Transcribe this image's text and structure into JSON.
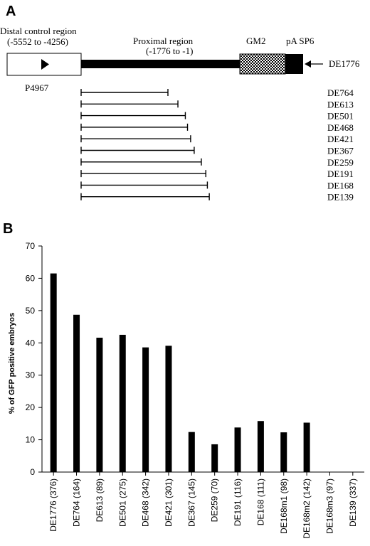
{
  "panel_a": {
    "letter": "A",
    "distal_label_line1": "Distal control region",
    "distal_label_line2": "(-5552 to -4256)",
    "proximal_label_line1": "Proximal region",
    "proximal_label_line2": "(-1776 to -1)",
    "gm2_label": "GM2",
    "pa_sp6_label": "pA SP6",
    "full_construct_label": "DE1776",
    "probe_label": "P4967",
    "deletions": [
      {
        "label": "DE764",
        "length": 764
      },
      {
        "label": "DE613",
        "length": 613
      },
      {
        "label": "DE501",
        "length": 501
      },
      {
        "label": "DE468",
        "length": 468
      },
      {
        "label": "DE421",
        "length": 421
      },
      {
        "label": "DE367",
        "length": 367
      },
      {
        "label": "DE259",
        "length": 259
      },
      {
        "label": "DE191",
        "length": 191
      },
      {
        "label": "DE168",
        "length": 168
      },
      {
        "label": "DE139",
        "length": 139
      }
    ]
  },
  "panel_b": {
    "letter": "B"
  },
  "chart_data": {
    "type": "bar",
    "ylabel": "% of GFP positive embryos",
    "ylim": [
      0,
      70
    ],
    "yticks": [
      0,
      10,
      20,
      30,
      40,
      50,
      60,
      70
    ],
    "categories": [
      "DE1776 (376)",
      "DE764 (164)",
      "DE613 (89)",
      "DE501 (275)",
      "DE468 (342)",
      "DE421 (301)",
      "DE367 (145)",
      "DE259 (70)",
      "DE191 (116)",
      "DE168 (111)",
      "DE168m1 (98)",
      "DE168m2 (142)",
      "DE168m3 (97)",
      "DE139 (337)"
    ],
    "values": [
      61.5,
      48.7,
      41.6,
      42.5,
      38.6,
      39.1,
      12.4,
      8.6,
      13.8,
      15.8,
      12.3,
      15.3,
      0,
      0
    ],
    "bar_color": "#000000"
  }
}
